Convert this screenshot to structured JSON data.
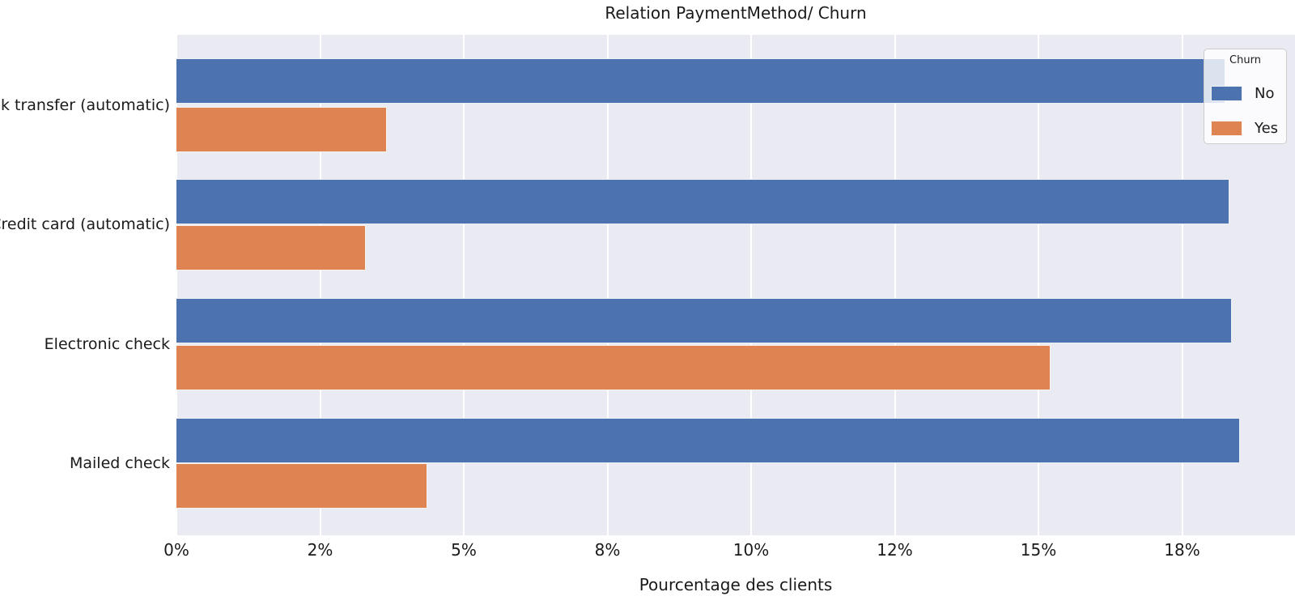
{
  "chart_data": {
    "type": "bar",
    "orientation": "horizontal",
    "title": "Relation PaymentMethod/ Churn",
    "xlabel": "Pourcentage des clients",
    "ylabel": "",
    "categories": [
      "Bank transfer (automatic)",
      "Credit card (automatic)",
      "Electronic check",
      "Mailed check"
    ],
    "series": [
      {
        "name": "No",
        "color": "#4c72b0",
        "values": [
          18.26,
          18.32,
          18.37,
          18.51
        ]
      },
      {
        "name": "Yes",
        "color": "#dd8452",
        "values": [
          3.66,
          3.29,
          15.21,
          4.37
        ]
      }
    ],
    "value_unit": "percent_of_clients",
    "xlim": [
      0,
      19.46
    ],
    "x_ticks": [
      {
        "value": 0,
        "label": "0%"
      },
      {
        "value": 2.5,
        "label": "2%"
      },
      {
        "value": 5,
        "label": "5%"
      },
      {
        "value": 7.5,
        "label": "8%"
      },
      {
        "value": 10,
        "label": "10%"
      },
      {
        "value": 12.5,
        "label": "12%"
      },
      {
        "value": 15,
        "label": "15%"
      },
      {
        "value": 17.5,
        "label": "18%"
      }
    ],
    "legend": {
      "title": "Churn",
      "position": "upper-right",
      "entries": [
        "No",
        "Yes"
      ]
    },
    "style": {
      "axes_background": "#eaeaf2",
      "grid_color": "#ffffff",
      "grid": "vertical",
      "text_color": "#1a1a1a",
      "bar_edge_color": "#ffffff"
    }
  }
}
